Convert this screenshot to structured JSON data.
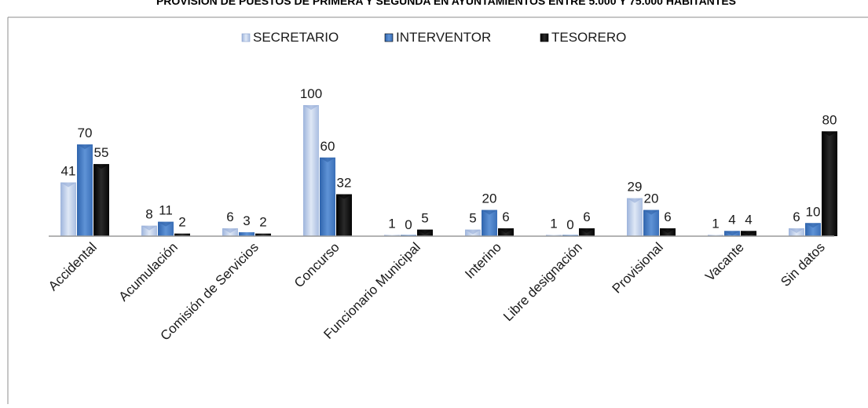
{
  "chart_data": {
    "type": "bar",
    "title": "PROVISIÓN DE PUESTOS DE PRIMERA Y SEGUNDA EN AYUNTAMIENTOS ENTRE 5.000 Y 75.000 HABITANTES",
    "categories": [
      "Accidental",
      "Acumulación",
      "Comisión de Servicios",
      "Concurso",
      "Funcionario Municipal",
      "Interino",
      "Libre designación",
      "Provisional",
      "Vacante",
      "Sin datos"
    ],
    "series": [
      {
        "name": "SECRETARIO",
        "values": [
          41,
          8,
          6,
          100,
          1,
          5,
          1,
          29,
          1,
          6
        ],
        "color": "#b9cbe8"
      },
      {
        "name": "INTERVENTOR",
        "values": [
          70,
          11,
          3,
          60,
          0,
          20,
          0,
          20,
          4,
          10
        ],
        "color": "#4a7fc4"
      },
      {
        "name": "TESORERO",
        "values": [
          55,
          2,
          2,
          32,
          5,
          6,
          6,
          6,
          4,
          80
        ],
        "color": "#111111"
      }
    ],
    "ylim": [
      0,
      115
    ],
    "legend_position": "top-center",
    "grid": false,
    "data_labels": true
  }
}
